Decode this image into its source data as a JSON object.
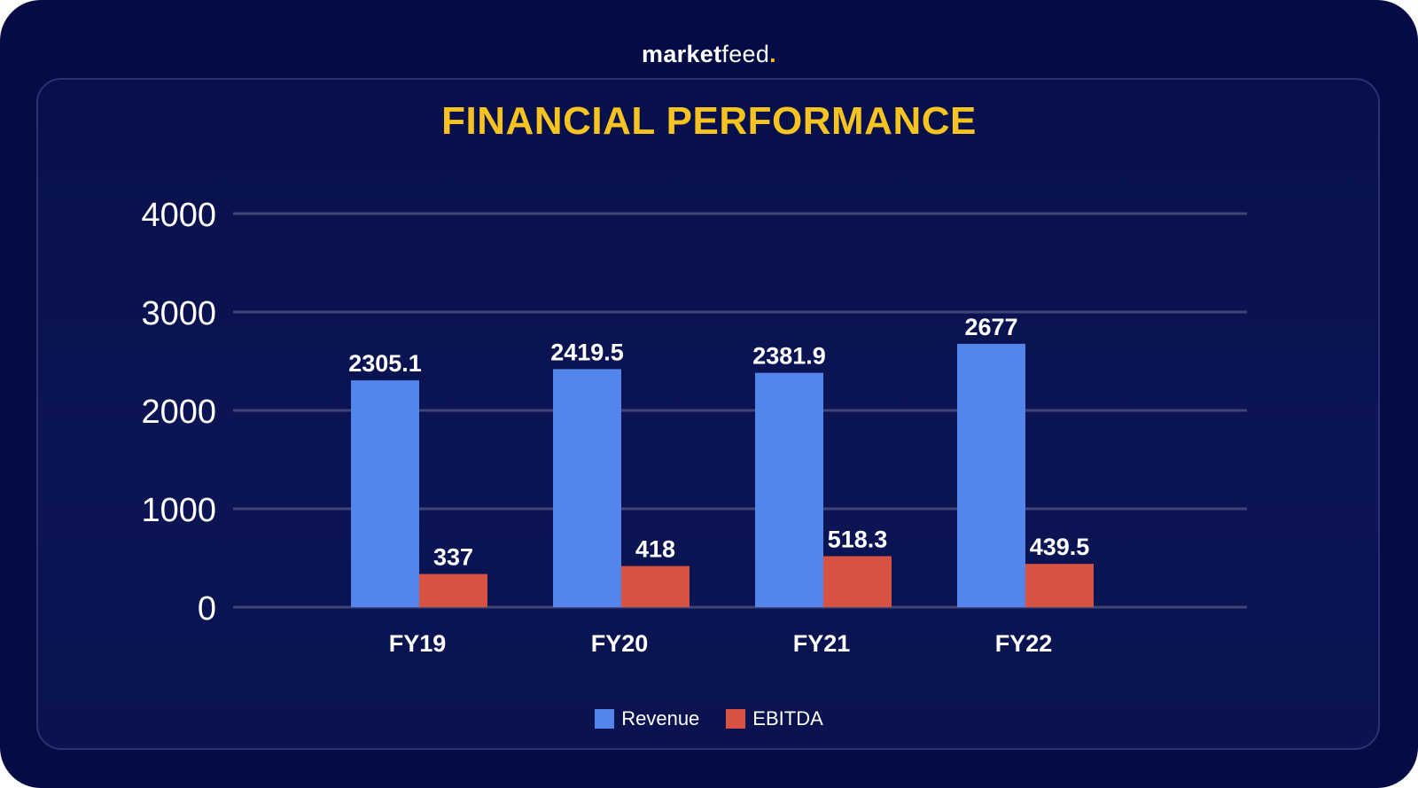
{
  "brand": {
    "name_bold": "market",
    "name_light": "feed",
    "dot": "."
  },
  "colors": {
    "background": "#040b45",
    "title": "#f6c321",
    "revenue": "#5485ea",
    "ebitda": "#d85243",
    "grid": "#3e4678",
    "text": "#ffffff"
  },
  "chart_data": {
    "type": "bar",
    "title": "FINANCIAL PERFORMANCE",
    "categories": [
      "FY19",
      "FY20",
      "FY21",
      "FY22"
    ],
    "series": [
      {
        "name": "Revenue",
        "values": [
          2305.1,
          2419.5,
          2381.9,
          2677
        ],
        "labels": [
          "2305.1",
          "2419.5",
          "2381.9",
          "2677"
        ]
      },
      {
        "name": "EBITDA",
        "values": [
          337,
          418,
          518.3,
          439.5
        ],
        "labels": [
          "337",
          "418",
          "518.3",
          "439.5"
        ]
      }
    ],
    "yticks": [
      0,
      1000,
      2000,
      3000,
      4000
    ],
    "ylim": [
      0,
      4000
    ],
    "grid": true,
    "legend": "bottom-center"
  }
}
